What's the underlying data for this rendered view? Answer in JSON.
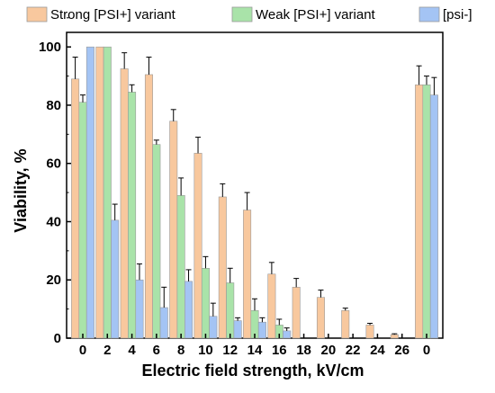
{
  "chart_data": {
    "type": "bar",
    "xlabel": "Electric field strength, kV/cm",
    "ylabel": "Viability, %",
    "ylim": [
      0,
      105
    ],
    "yticks": [
      0,
      20,
      40,
      60,
      80,
      100
    ],
    "categories": [
      "0",
      "2",
      "4",
      "6",
      "8",
      "10",
      "12",
      "14",
      "16",
      "18",
      "20",
      "22",
      "24",
      "26",
      "0"
    ],
    "legend_placement": "top",
    "series": [
      {
        "name": "Strong [PSI+] variant",
        "color": "#f8c89e",
        "values": [
          89,
          100,
          92.5,
          90.5,
          74.5,
          63.5,
          48.5,
          44,
          22,
          17.5,
          14,
          9.5,
          4.5,
          1.2,
          87
        ],
        "errors": [
          7.5,
          0,
          5.5,
          6,
          4,
          5.5,
          4.5,
          6,
          4,
          3,
          2.5,
          0.8,
          0.6,
          0.3,
          6.5
        ]
      },
      {
        "name": "Weak [PSI+] variant",
        "color": "#a9e3a9",
        "values": [
          81,
          100,
          84.5,
          66.5,
          49,
          24,
          19,
          9.5,
          4.5,
          0,
          0,
          0,
          0,
          0,
          87
        ],
        "errors": [
          2.5,
          0,
          2.5,
          1.5,
          6,
          4,
          5,
          4,
          2,
          0,
          0,
          0,
          0,
          0,
          3
        ]
      },
      {
        "name": "[psi-]",
        "color": "#a4c4f4",
        "values": [
          100,
          40.5,
          20,
          10.5,
          19.5,
          7.5,
          6,
          5.5,
          2.5,
          0,
          0,
          0,
          0,
          0,
          83.5
        ],
        "errors": [
          0,
          5.5,
          5.5,
          7,
          4,
          4.5,
          1,
          1.5,
          1,
          0,
          0,
          0,
          0,
          0,
          6
        ]
      }
    ]
  }
}
